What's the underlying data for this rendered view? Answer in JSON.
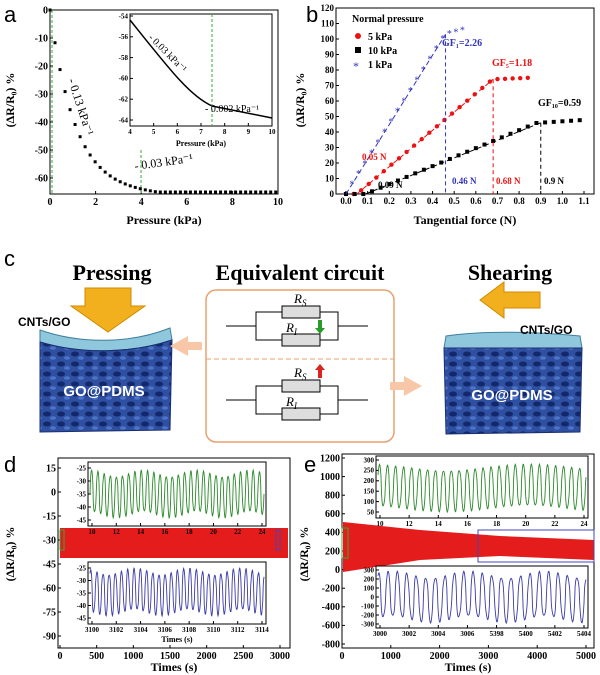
{
  "panel_labels": [
    "a",
    "b",
    "c",
    "d",
    "e"
  ],
  "panel_a": {
    "xlabel": "Pressure (kPa)",
    "ylabel": "(ΔR/R₀) %",
    "xticks": [
      "0",
      "2",
      "4",
      "6",
      "8",
      "10"
    ],
    "yticks": [
      "0",
      "-10",
      "-20",
      "-30",
      "-40",
      "-50",
      "-60"
    ],
    "slope1": "- 0.13 kPa⁻¹",
    "slope2": "- 0.03 kPa⁻¹",
    "inset": {
      "xlabel": "Pressure (kPa)",
      "xticks": [
        "4",
        "5",
        "6",
        "7",
        "8",
        "9",
        "10"
      ],
      "yticks": [
        "-54",
        "-56",
        "-58",
        "-60",
        "-62",
        "-64"
      ],
      "slope1": "- 0.03 kPa⁻¹",
      "slope2": "- 0.002 kPa⁻¹"
    }
  },
  "panel_b": {
    "xlabel": "Tangential force (N)",
    "ylabel": "(ΔR/R₀) %",
    "xticks": [
      "0.0",
      "0.1",
      "0.2",
      "0.3",
      "0.4",
      "0.5",
      "0.6",
      "0.7",
      "0.8",
      "0.9",
      "1.0",
      "1.1"
    ],
    "yticks": [
      "0",
      "10",
      "20",
      "30",
      "40",
      "50",
      "60",
      "70",
      "80",
      "90",
      "100",
      "110",
      "120"
    ],
    "legend_title": "Normal pressure",
    "legend": [
      "5 kPa",
      "10 kPa",
      "1 kPa"
    ],
    "gf1": "GF₁=2.26",
    "gf5": "GF₅=1.18",
    "gf10": "GF₁₀=0.59",
    "ann": [
      "0.05 N",
      "0.09 N",
      "0.46 N",
      "0.68 N",
      "0.9 N"
    ]
  },
  "panel_c": {
    "pressing": "Pressing",
    "shearing": "Shearing",
    "circuit_title": "Equivalent circuit",
    "cnts_left": "CNTs/GO",
    "cnts_right": "CNTs/GO",
    "gopdms_left": "GO@PDMS",
    "gopdms_right": "GO@PDMS",
    "rs": "R",
    "rs_sub": "S",
    "ri": "R",
    "ri_sub": "I"
  },
  "panel_d": {
    "xlabel": "Times (s)",
    "ylabel": "(ΔR/R₀) %",
    "xticks": [
      "0",
      "500",
      "1000",
      "1500",
      "2000",
      "2500",
      "3000"
    ],
    "yticks": [
      "15",
      "0",
      "-15",
      "-30",
      "-45",
      "-60",
      "-75",
      "-90"
    ],
    "inset_top_xticks": [
      "10",
      "12",
      "14",
      "16",
      "18",
      "20",
      "22",
      "24"
    ],
    "inset_top_yticks": [
      "-25",
      "-30",
      "-35",
      "-40",
      "-45"
    ],
    "inset_bot_xticks": [
      "3100",
      "3102",
      "3104",
      "3106",
      "3108",
      "3110",
      "3112",
      "3114"
    ],
    "inset_bot_yticks": [
      "-25",
      "-30",
      "-35",
      "-40",
      "-45"
    ],
    "inset_bot_xlabel": "Times (s)"
  },
  "panel_e": {
    "xlabel": "Times (s)",
    "ylabel": "(ΔR/R₀) %",
    "xticks": [
      "0",
      "1000",
      "2000",
      "3000",
      "4000",
      "5000"
    ],
    "yticks": [
      "1200",
      "1000",
      "800",
      "600",
      "400",
      "200",
      "0",
      "-200",
      "-400",
      "-600",
      "-800"
    ],
    "inset_top_xticks": [
      "10",
      "12",
      "14",
      "16",
      "18",
      "20",
      "22",
      "24"
    ],
    "inset_top_yticks": [
      "300",
      "250",
      "200",
      "150",
      "100",
      "50"
    ],
    "inset_bot_xticks": [
      "3000",
      "3002",
      "3004",
      "3006",
      "5398",
      "5400",
      "5402",
      "5404"
    ],
    "inset_bot_yticks": [
      "300",
      "200",
      "100",
      "0",
      "-100",
      "-200",
      "-300"
    ]
  }
}
